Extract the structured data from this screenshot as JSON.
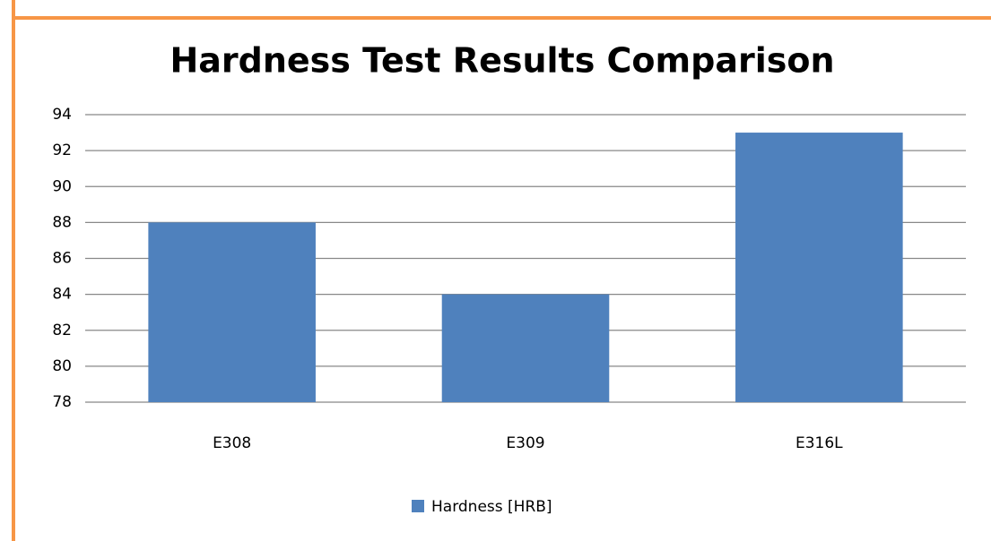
{
  "chart_data": {
    "type": "bar",
    "title": "Hardness Test Results Comparison",
    "categories": [
      "E308",
      "E309",
      "E316L"
    ],
    "series": [
      {
        "name": "Hardness [HRB]",
        "color": "#4f81bd",
        "values": [
          88,
          84,
          93
        ]
      }
    ],
    "ylim": [
      78,
      94
    ],
    "yticks": [
      78,
      80,
      82,
      84,
      86,
      88,
      90,
      92,
      94
    ],
    "grid": true,
    "legend": "bottom"
  }
}
